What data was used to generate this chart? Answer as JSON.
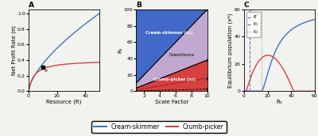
{
  "panel_A": {
    "title": "A",
    "xlabel": "Resource (R)",
    "ylabel": "Net Profit Rate (π)",
    "xlim": [
      0,
      50
    ],
    "ylim": [
      0,
      1.05
    ],
    "cs_color": "#4472C4",
    "cp_color": "#D84040",
    "intersection_x": 10,
    "intersection_y": 0.305,
    "xticks": [
      0,
      20,
      40
    ],
    "yticks": [
      0,
      0.2,
      0.4,
      0.6,
      0.8,
      1.0
    ]
  },
  "panel_B": {
    "title": "B",
    "xlabel": "Scale Factor",
    "ylabel": "R₀",
    "xlim": [
      1,
      10
    ],
    "ylim": [
      0,
      100
    ],
    "blue_color": "#4169C8",
    "red_color": "#D84040",
    "lavender_color": "#C0A8D0",
    "slope_upper": 10.0,
    "slope_lower": 3.8,
    "slope_dot1": 1.6,
    "slope_dot2": 0.25,
    "label_cs": "Cream-skimmer (x₁)",
    "label_cp": "Crumb-picker (x₂)",
    "label_coex": "Coexistence",
    "xticks": [
      2,
      4,
      6,
      8,
      10
    ],
    "yticks": [
      0,
      20,
      40,
      60,
      80,
      100
    ]
  },
  "panel_C": {
    "title": "C",
    "xlabel": "R₀",
    "ylabel": "Equilibrium population (x*)",
    "xlim": [
      0,
      60
    ],
    "ylim": [
      0,
      60
    ],
    "cs_color": "#4472C4",
    "cp_color": "#D84040",
    "vline1_x": 5,
    "vline2_x": 15,
    "vline1_style": "--",
    "vline2_style": "dotted",
    "vline1_color": "#7070C0",
    "vline2_color": "#909090",
    "cs_start": 15,
    "cp_start": 2,
    "cp_peak_x": 25,
    "cp_peak_y": 28,
    "cp_end": 42,
    "cs_max": 60,
    "legend_Rstar_color": "#606060",
    "legend_K1_color": "#4472C4",
    "legend_K2_color": "#C8A000",
    "xticks": [
      0,
      20,
      40,
      60
    ],
    "yticks": [
      0,
      20,
      40,
      60
    ]
  },
  "legend": {
    "cs_label": "Cream-skimmer",
    "cp_label": "Crumb-picker",
    "cs_color": "#4472C4",
    "cp_color": "#D84040"
  },
  "bg_color": "#F2F2EE"
}
